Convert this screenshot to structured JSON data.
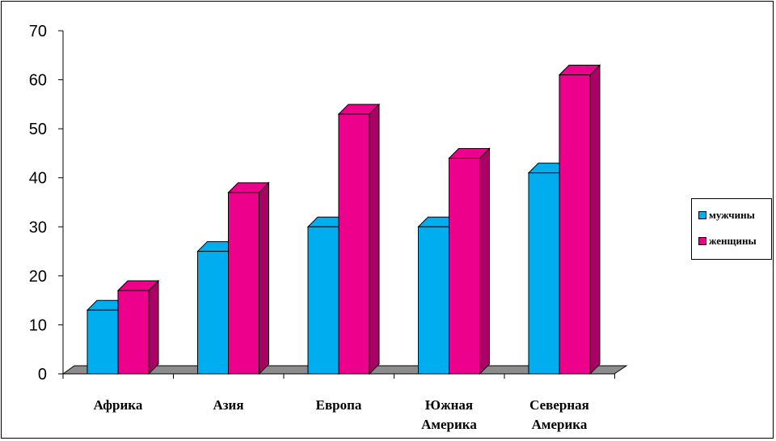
{
  "chart_data": {
    "type": "bar",
    "categories": [
      [
        "Африка"
      ],
      [
        "Азия"
      ],
      [
        "Европа"
      ],
      [
        "Южная",
        "Америка"
      ],
      [
        "Северная",
        "Америка"
      ]
    ],
    "series": [
      {
        "name": "мужчины",
        "values": [
          13,
          25,
          30,
          30,
          41
        ],
        "color": "#00AEEF"
      },
      {
        "name": "женщины",
        "values": [
          17,
          37,
          53,
          44,
          61
        ],
        "color": "#EC008C"
      }
    ],
    "ylim": [
      0,
      70
    ],
    "yticks": [
      0,
      10,
      20,
      30,
      40,
      50,
      60,
      70
    ],
    "grid": false,
    "legend_position": "right",
    "style": "3d-clustered-bar"
  },
  "legend": {
    "items": [
      {
        "label": "мужчины",
        "color": "#00AEEF"
      },
      {
        "label": "женщины",
        "color": "#EC008C"
      }
    ]
  }
}
